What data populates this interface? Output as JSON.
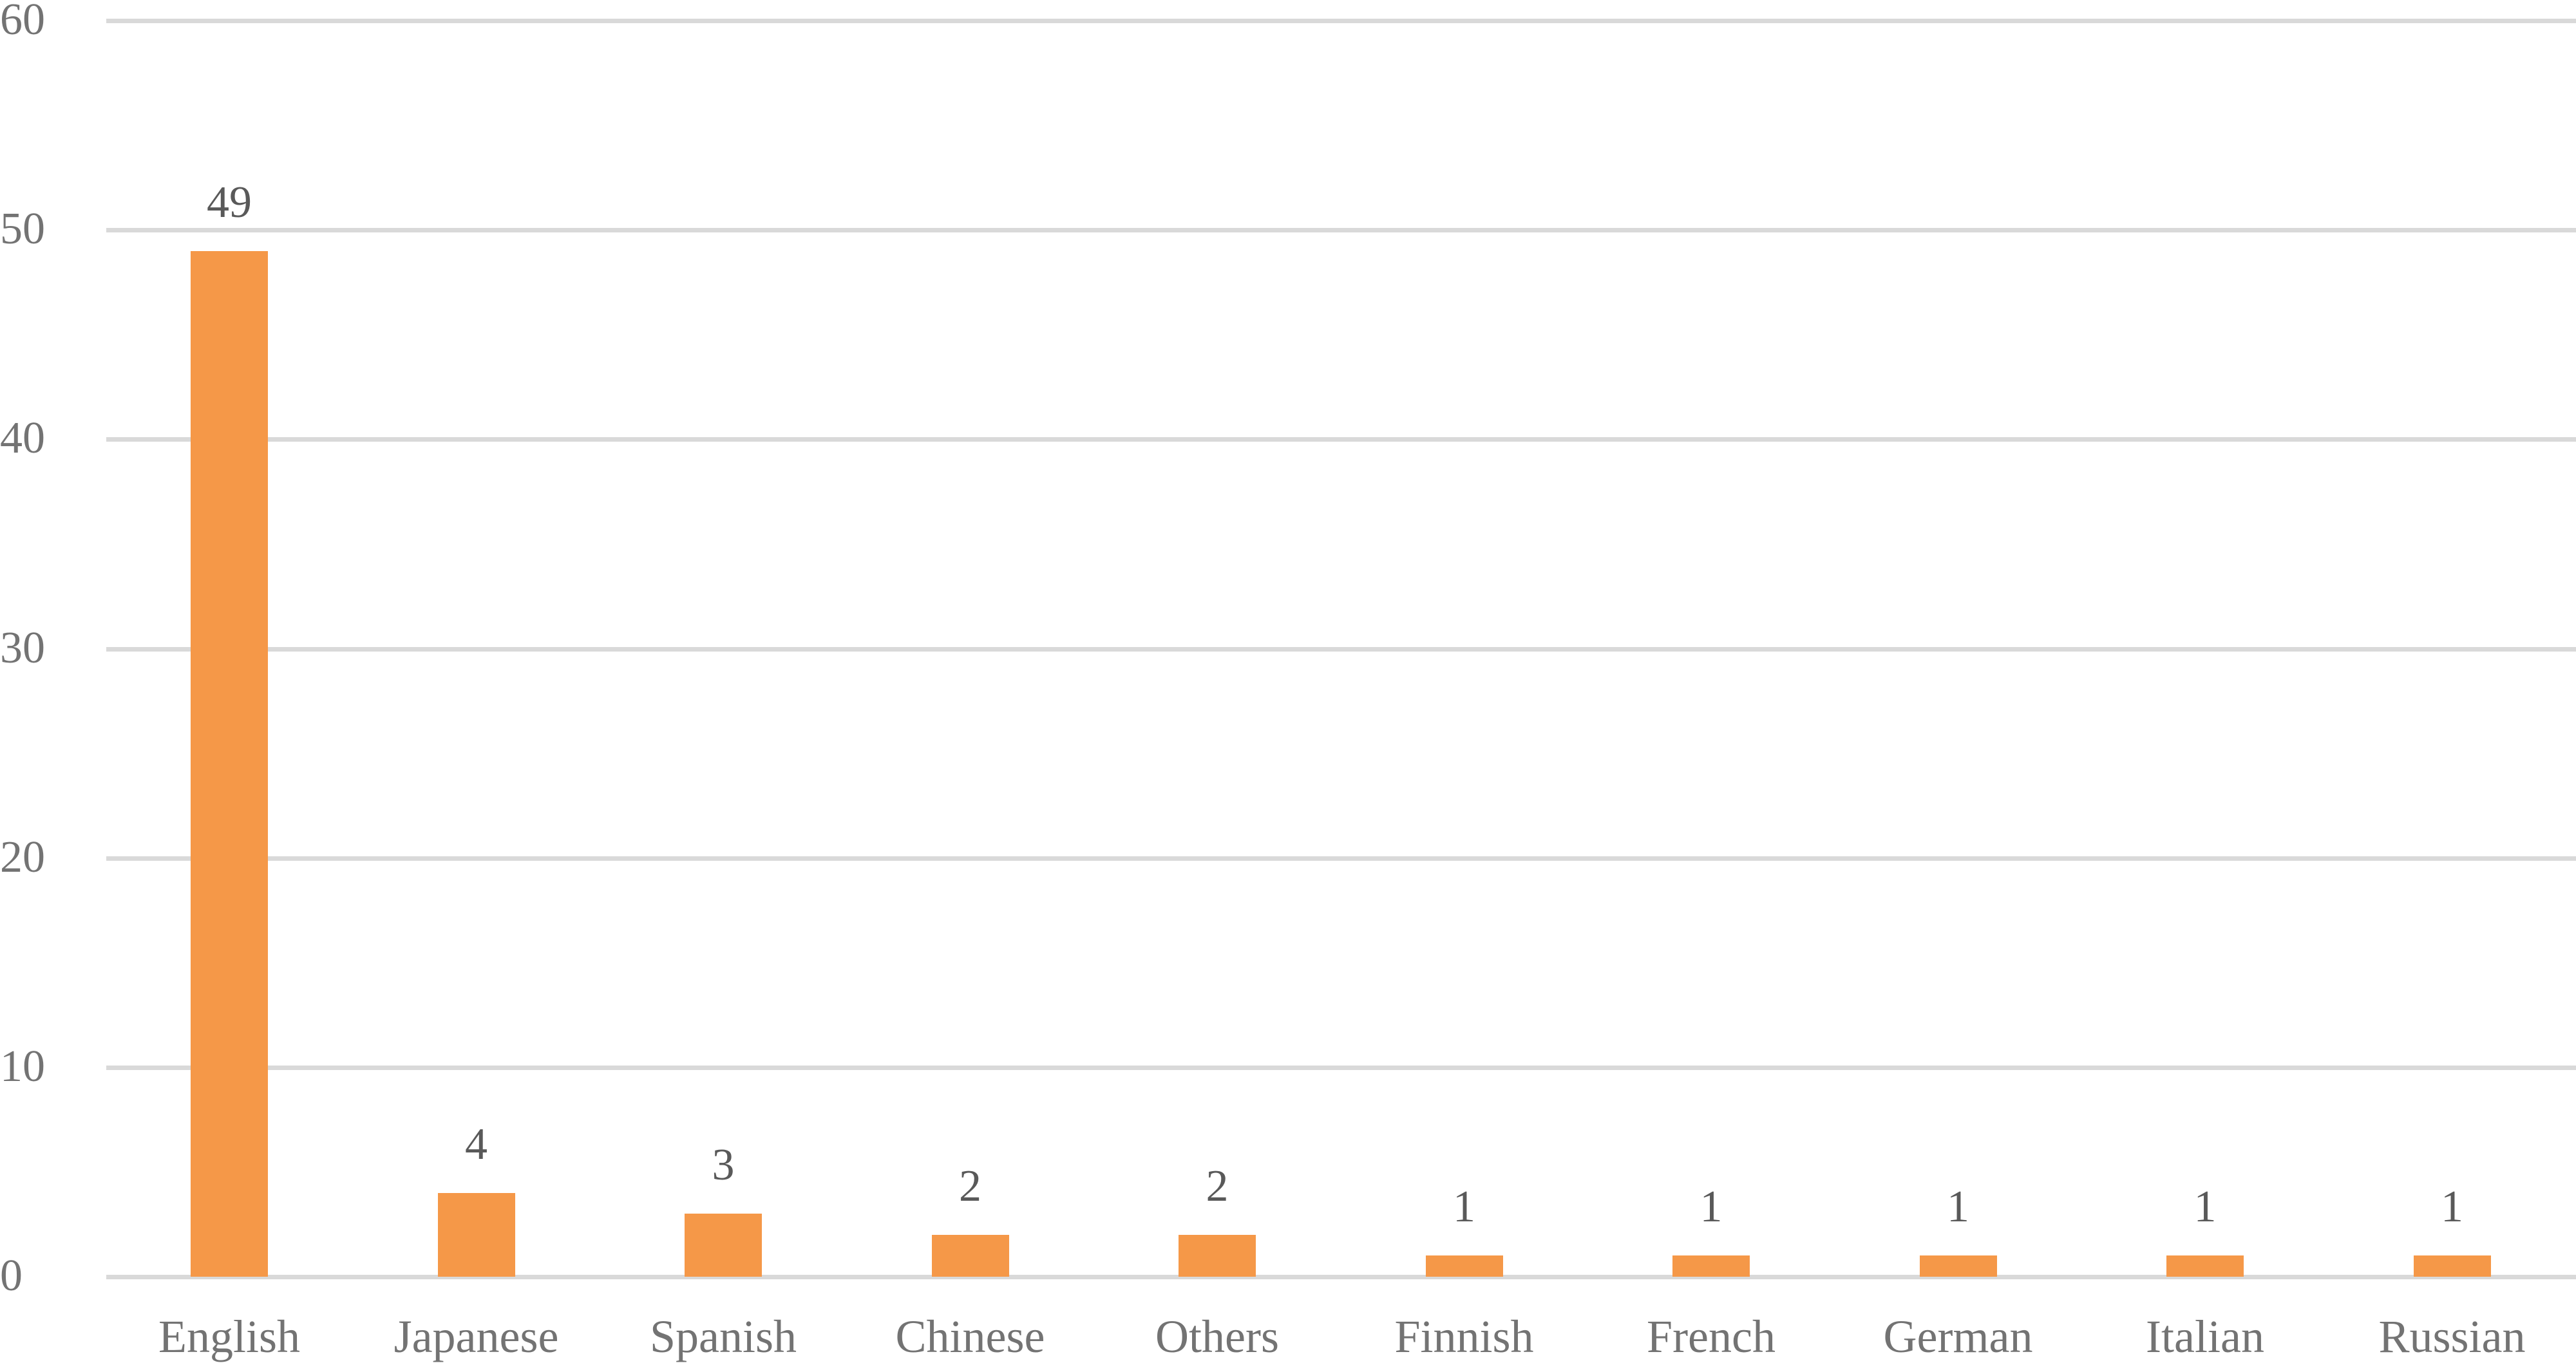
{
  "chart_data": {
    "type": "bar",
    "title": "",
    "xlabel": "",
    "ylabel": "",
    "categories": [
      "English",
      "Japanese",
      "Spanish",
      "Chinese",
      "Others",
      "Finnish",
      "French",
      "German",
      "Italian",
      "Russian"
    ],
    "values": [
      49,
      4,
      3,
      2,
      2,
      1,
      1,
      1,
      1,
      1
    ],
    "data_labels": [
      "49",
      "4",
      "3",
      "2",
      "2",
      "1",
      "1",
      "1",
      "1",
      "1"
    ],
    "ylim": [
      0,
      60
    ],
    "yticks": [
      "0",
      "10",
      "20",
      "30",
      "40",
      "50",
      "60"
    ],
    "grid": true,
    "legend": null,
    "colors": {
      "bar": "#f59848",
      "grid": "#d9d9d9",
      "text": "#737373"
    }
  }
}
